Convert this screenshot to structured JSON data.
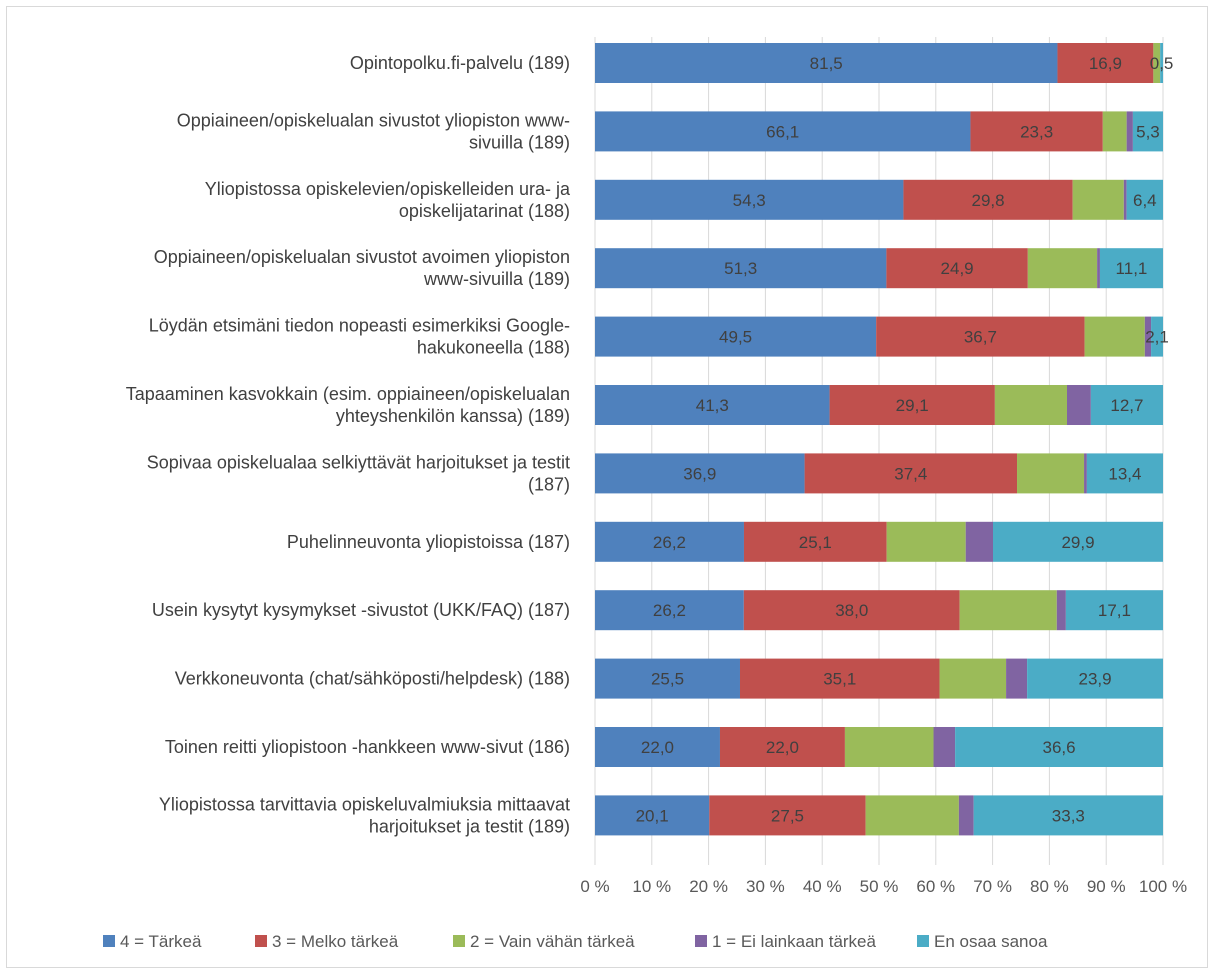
{
  "chart_data": {
    "type": "bar",
    "orientation": "horizontal",
    "stacked": true,
    "normalized": true,
    "colors": [
      "#4f81bd",
      "#c0504d",
      "#9bbb59",
      "#8064a2",
      "#4bacc6"
    ],
    "categories": [
      [
        "Opintopolku.fi-palvelu (189)"
      ],
      [
        "Oppiaineen/opiskelualan sivustot yliopiston www-",
        "sivuilla (189)"
      ],
      [
        "Yliopistossa opiskelevien/opiskelleiden ura- ja",
        "opiskelijatarinat (188)"
      ],
      [
        "Oppiaineen/opiskelualan sivustot avoimen yliopiston",
        "www-sivuilla (189)"
      ],
      [
        "Löydän etsimäni tiedon nopeasti esimerkiksi Google-",
        "hakukoneella (188)"
      ],
      [
        "Tapaaminen kasvokkain (esim. oppiaineen/opiskelualan",
        "yhteyshenkilön kanssa) (189)"
      ],
      [
        "Sopivaa opiskelualaa selkiyttävät harjoitukset ja testit",
        "(187)"
      ],
      [
        "Puhelinneuvonta yliopistoissa (187)"
      ],
      [
        "Usein kysytyt kysymykset -sivustot (UKK/FAQ) (187)"
      ],
      [
        "Verkkoneuvonta (chat/sähköposti/helpdesk) (188)"
      ],
      [
        "Toinen reitti yliopistoon -hankkeen www-sivut (186)"
      ],
      [
        "Yliopistossa tarvittavia opiskeluvalmiuksia mittaavat",
        "harjoitukset ja testit (189)"
      ]
    ],
    "series": [
      {
        "name": "4 = Tärkeä",
        "values": [
          81.5,
          66.1,
          54.3,
          51.3,
          49.5,
          41.3,
          36.9,
          26.2,
          26.2,
          25.5,
          22.0,
          20.1
        ]
      },
      {
        "name": "3 = Melko tärkeä",
        "values": [
          16.9,
          23.3,
          29.8,
          24.9,
          36.7,
          29.1,
          37.4,
          25.1,
          38.0,
          35.1,
          22.0,
          27.5
        ]
      },
      {
        "name": "2 = Vain vähän tärkeä",
        "values": [
          1.2,
          4.2,
          9.0,
          12.2,
          10.6,
          12.7,
          11.8,
          13.9,
          17.1,
          11.7,
          15.6,
          16.4
        ]
      },
      {
        "name": "1 = Ei lainkaan tärkeä",
        "values": [
          0.0,
          1.1,
          0.5,
          0.5,
          1.1,
          4.2,
          0.5,
          4.8,
          1.6,
          3.7,
          3.8,
          2.6
        ]
      },
      {
        "name": "En osaa sanoa",
        "values": [
          0.5,
          5.3,
          6.4,
          11.1,
          2.1,
          12.7,
          13.4,
          29.9,
          17.1,
          23.9,
          36.6,
          33.3
        ]
      }
    ],
    "data_labels": [
      [
        "81,5",
        "16,9",
        "",
        "",
        "0,5"
      ],
      [
        "66,1",
        "23,3",
        "",
        "",
        "5,3"
      ],
      [
        "54,3",
        "29,8",
        "",
        "",
        "6,4"
      ],
      [
        "51,3",
        "24,9",
        "",
        "",
        "11,1"
      ],
      [
        "49,5",
        "36,7",
        "",
        "",
        "2,1"
      ],
      [
        "41,3",
        "29,1",
        "",
        "",
        "12,7"
      ],
      [
        "36,9",
        "37,4",
        "",
        "",
        "13,4"
      ],
      [
        "26,2",
        "25,1",
        "",
        "",
        "29,9"
      ],
      [
        "26,2",
        "38,0",
        "",
        "",
        "17,1"
      ],
      [
        "25,5",
        "35,1",
        "",
        "",
        "23,9"
      ],
      [
        "22,0",
        "22,0",
        "",
        "",
        "36,6"
      ],
      [
        "20,1",
        "27,5",
        "",
        "",
        "33,3"
      ]
    ],
    "xlim": [
      0,
      100
    ],
    "x_ticks": [
      "0 %",
      "10 %",
      "20 %",
      "30 %",
      "40 %",
      "50 %",
      "60 %",
      "70 %",
      "80 %",
      "90 %",
      "100 %"
    ],
    "grid": "vertical",
    "legend_position": "bottom"
  }
}
